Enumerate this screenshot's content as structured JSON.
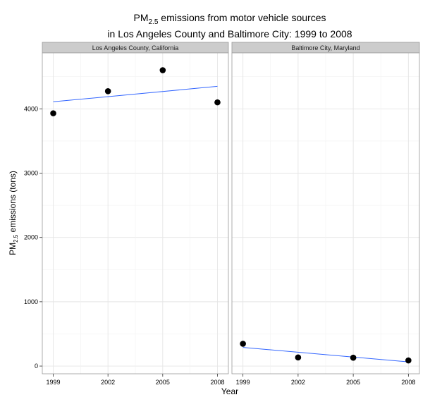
{
  "chart_data": {
    "type": "scatter",
    "title_line1_main": "PM",
    "title_line1_sub": "2.5",
    "title_line1_rest": " emissions from motor vehicle sources",
    "title_line2": "in Los Angeles County and Baltimore City: 1999 to 2008",
    "xlabel": "Year",
    "ylabel_main": "PM",
    "ylabel_sub": "2.5",
    "ylabel_rest": " emissions (tons)",
    "x_ticks": [
      "1999",
      "2002",
      "2005",
      "2008"
    ],
    "y_ticks": [
      "0",
      "1000",
      "2000",
      "3000",
      "4000"
    ],
    "xlim": [
      1998.4,
      2008.6
    ],
    "ylim": [
      -120,
      4870
    ],
    "grid": true,
    "panels": [
      {
        "name": "Los Angeles County, California",
        "points": [
          {
            "x": 1999,
            "y": 3931
          },
          {
            "x": 2002,
            "y": 4274
          },
          {
            "x": 2005,
            "y": 4601
          },
          {
            "x": 2008,
            "y": 4101
          }
        ],
        "trend": [
          {
            "x": 1999,
            "y": 4110
          },
          {
            "x": 2008,
            "y": 4350
          }
        ]
      },
      {
        "name": "Baltimore City, Maryland",
        "points": [
          {
            "x": 1999,
            "y": 347
          },
          {
            "x": 2002,
            "y": 134
          },
          {
            "x": 2005,
            "y": 130
          },
          {
            "x": 2008,
            "y": 88
          }
        ],
        "trend": [
          {
            "x": 1999,
            "y": 290
          },
          {
            "x": 2008,
            "y": 65
          }
        ]
      }
    ],
    "colors": {
      "point": "#000000",
      "trend": "#3366ff",
      "strip_fill": "#cccccc",
      "grid": "#e5e5e5",
      "panel_border": "#999999"
    }
  }
}
